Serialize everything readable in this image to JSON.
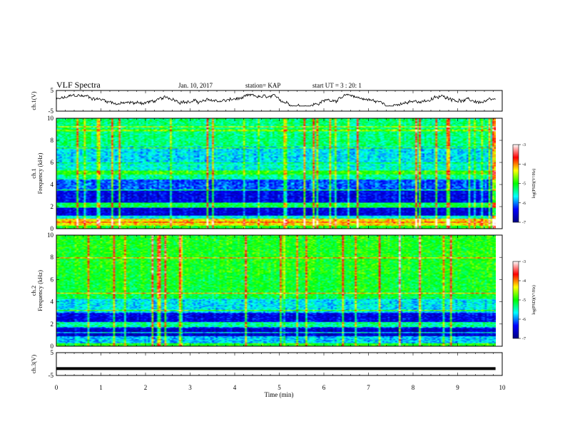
{
  "header": {
    "title": "VLF Spectra",
    "date": "Jan. 10, 2017",
    "station": "station= KAP",
    "start": "start UT =  3 : 20: 1"
  },
  "chart_data": [
    {
      "type": "line",
      "ylabel": "ch.1(V)",
      "ylim": [
        -5,
        5
      ],
      "yticks": [
        "5",
        "-5"
      ],
      "xlim": [
        0,
        10
      ],
      "note": "noisy voltage trace oscillating roughly between -2 and 3 V over 0-9.8 min"
    },
    {
      "type": "heatmap",
      "ylabel": "ch.1\nFrequency (kHz)",
      "ylim": [
        0,
        10
      ],
      "yticks": [
        "0",
        "2",
        "4",
        "6",
        "8",
        "10"
      ],
      "xlim": [
        0,
        9.85
      ],
      "colorbar": {
        "label": "log(PSD)(V²/Hz)",
        "min": -7,
        "max": -3,
        "ticks": [
          "-3",
          "-4",
          "-5",
          "-6",
          "-7"
        ]
      }
    },
    {
      "type": "heatmap",
      "ylabel": "ch.2\nFrequency (kHz)",
      "ylim": [
        0,
        10
      ],
      "yticks": [
        "0",
        "2",
        "4",
        "6",
        "8",
        "10"
      ],
      "xlim": [
        0,
        9.85
      ],
      "colorbar": {
        "label": "log(PSD)(V²/Hz)",
        "min": -7,
        "max": -3,
        "ticks": [
          "-3",
          "-4",
          "-5",
          "-6",
          "-7"
        ]
      }
    },
    {
      "type": "line",
      "ylabel": "ch.3(V)",
      "ylim": [
        -5,
        5
      ],
      "yticks": [
        "5",
        "-5"
      ],
      "xlim": [
        0,
        10
      ],
      "x": [
        0,
        9.85
      ],
      "y": [
        -2,
        -2
      ]
    }
  ],
  "xaxis": {
    "label": "Time (min)",
    "ticks": [
      "0",
      "1",
      "2",
      "3",
      "4",
      "5",
      "6",
      "7",
      "8",
      "9",
      "10"
    ]
  },
  "colors": {
    "trace": "#000000",
    "colormap": [
      "#000080",
      "#0000ff",
      "#00ffff",
      "#00ff00",
      "#ffff00",
      "#ff0000",
      "#ffffff"
    ]
  }
}
